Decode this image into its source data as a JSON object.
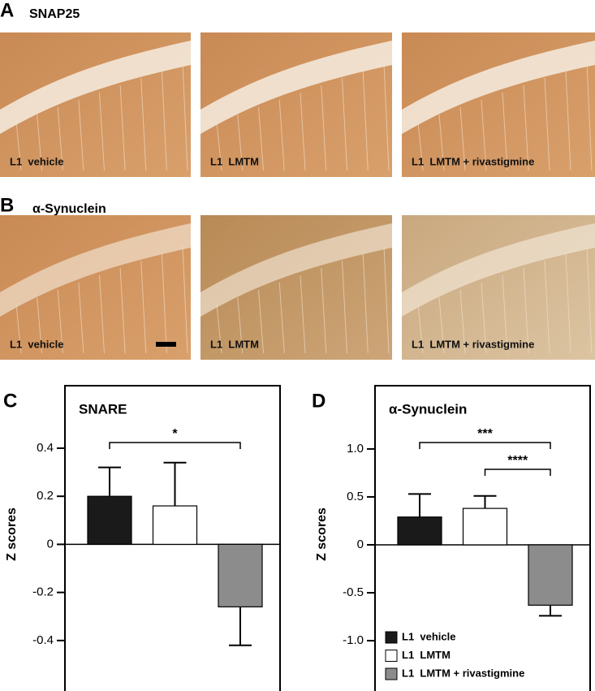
{
  "panels": [
    {
      "label": "A",
      "title": "SNAP25",
      "images": [
        "L1  vehicle",
        "L1  LMTM",
        "L1  LMTM + rivastigmine"
      ]
    },
    {
      "label": "B",
      "title": "α-Synuclein",
      "images": [
        "L1  vehicle",
        "L1  LMTM",
        "L1  LMTM + rivastigmine"
      ]
    }
  ],
  "chart_data": [
    {
      "type": "bar",
      "label": "C",
      "title": "SNARE",
      "ylabel": "Z scores",
      "values": [
        0.2,
        0.16,
        -0.26
      ],
      "errors": [
        0.12,
        0.18,
        0.16
      ],
      "colors": [
        "#1a1a1a",
        "#ffffff",
        "#8c8c8c"
      ],
      "ylim": [
        -0.61,
        0.66
      ],
      "yticks": [
        0.4,
        0.2,
        0,
        -0.2,
        -0.4
      ],
      "annotations": [
        "*"
      ]
    },
    {
      "type": "bar",
      "label": "D",
      "title": "α-Synuclein",
      "ylabel": "Z scores",
      "series": [
        {
          "name": "L1  vehicle",
          "color": "#1a1a1a",
          "values": [
            0.29
          ],
          "errors": [
            0.24
          ]
        },
        {
          "name": "L1  LMTM",
          "color": "#ffffff",
          "values": [
            0.38
          ],
          "errors": [
            0.13
          ]
        },
        {
          "name": "L1  LMTM + rivastigmine",
          "color": "#8c8c8c",
          "values": [
            -0.63
          ],
          "errors": [
            0.11
          ]
        }
      ],
      "ylim": [
        -1.525,
        1.66
      ],
      "yticks": [
        {
          "value": 1,
          "label": "1.0"
        },
        0.5,
        0,
        -0.5,
        {
          "value": -1,
          "label": "-1.0"
        }
      ],
      "legend": "lower left",
      "annotations": [
        "***",
        "****"
      ]
    }
  ]
}
